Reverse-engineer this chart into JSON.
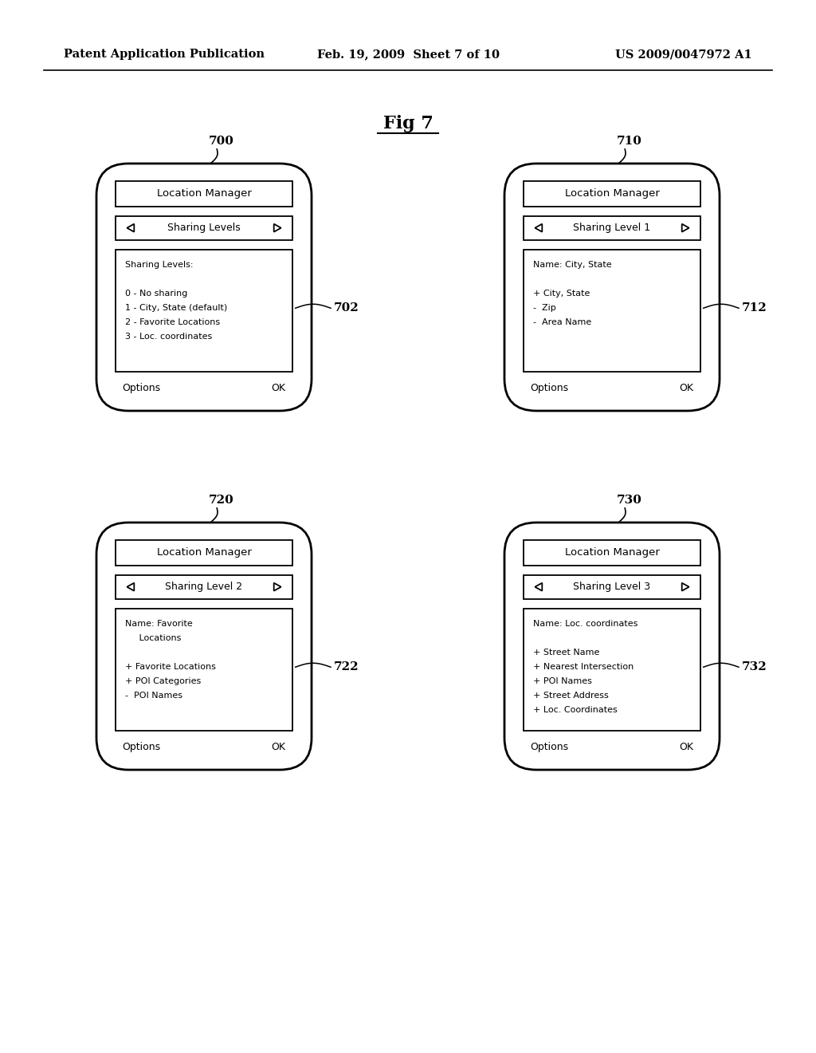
{
  "bg_color": "#ffffff",
  "text_color": "#000000",
  "header_left": "Patent Application Publication",
  "header_center": "Feb. 19, 2009  Sheet 7 of 10",
  "header_right": "US 2009/0047972 A1",
  "fig_title": "Fig 7",
  "phones": [
    {
      "id": "700",
      "label": "700",
      "col": 0,
      "row": 0,
      "title_bar": "Location Manager",
      "nav_bar": "Sharing Levels",
      "content_label": "702",
      "content_lines": [
        "Sharing Levels:",
        "",
        "0 - No sharing",
        "1 - City, State (default)",
        "2 - Favorite Locations",
        "3 - Loc. coordinates"
      ],
      "footer_left": "Options",
      "footer_right": "OK"
    },
    {
      "id": "710",
      "label": "710",
      "col": 1,
      "row": 0,
      "title_bar": "Location Manager",
      "nav_bar": "Sharing Level 1",
      "content_label": "712",
      "content_lines": [
        "Name: City, State",
        "",
        "+ City, State",
        "-  Zip",
        "-  Area Name"
      ],
      "footer_left": "Options",
      "footer_right": "OK"
    },
    {
      "id": "720",
      "label": "720",
      "col": 0,
      "row": 1,
      "title_bar": "Location Manager",
      "nav_bar": "Sharing Level 2",
      "content_label": "722",
      "content_lines": [
        "Name: Favorite",
        "     Locations",
        "",
        "+ Favorite Locations",
        "+ POI Categories",
        "-  POI Names"
      ],
      "footer_left": "Options",
      "footer_right": "OK"
    },
    {
      "id": "730",
      "label": "730",
      "col": 1,
      "row": 1,
      "title_bar": "Location Manager",
      "nav_bar": "Sharing Level 3",
      "content_label": "732",
      "content_lines": [
        "Name: Loc. coordinates",
        "",
        "+ Street Name",
        "+ Nearest Intersection",
        "+ POI Names",
        "+ Street Address",
        "+ Loc. Coordinates"
      ],
      "footer_left": "Options",
      "footer_right": "OK"
    }
  ]
}
